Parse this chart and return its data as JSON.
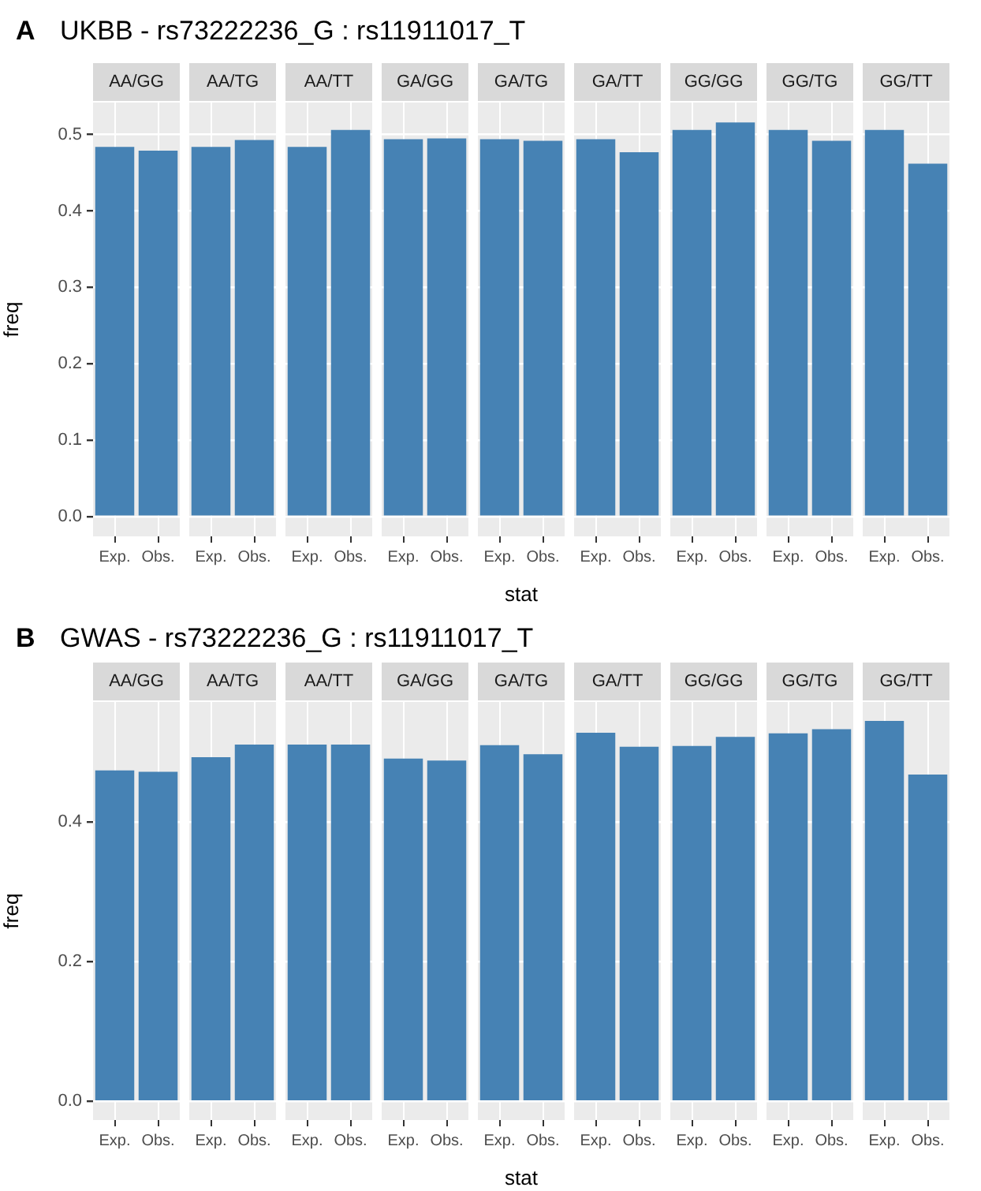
{
  "chart_data": [
    {
      "type": "other",
      "title": "UKBB - rs73222236_G : rs11911017_T",
      "annotations": [
        "A"
      ]
    },
    {
      "type": "bar",
      "title": "AA/GG",
      "categories": [
        "Exp.",
        "Obs."
      ],
      "values": [
        0.484,
        0.479
      ],
      "color": "#4682b4",
      "ylim": [
        -0.026,
        0.542
      ],
      "yticks": [
        {
          "value": 0,
          "label": "0.0"
        },
        0.1,
        0.2,
        0.3,
        0.4,
        0.5
      ],
      "grid": true,
      "ylabel": "freq"
    },
    {
      "type": "bar",
      "title": "AA/TG",
      "categories": [
        "Exp.",
        "Obs."
      ],
      "values": [
        0.484,
        0.493
      ],
      "color": "#4682b4",
      "ylim": [
        -0.026,
        0.542
      ],
      "yticks": [
        0,
        0.1,
        0.2,
        0.3,
        0.4,
        0.5
      ],
      "grid": true,
      "tick_labels": "x"
    },
    {
      "type": "bar",
      "title": "AA/TT",
      "categories": [
        "Exp.",
        "Obs."
      ],
      "values": [
        0.484,
        0.506
      ],
      "color": "#4682b4",
      "ylim": [
        -0.026,
        0.542
      ],
      "yticks": [
        0,
        0.1,
        0.2,
        0.3,
        0.4,
        0.5
      ],
      "grid": true,
      "tick_labels": "x"
    },
    {
      "type": "bar",
      "title": "GA/GG",
      "categories": [
        "Exp.",
        "Obs."
      ],
      "values": [
        0.494,
        0.495
      ],
      "color": "#4682b4",
      "ylim": [
        -0.026,
        0.542
      ],
      "yticks": [
        0,
        0.1,
        0.2,
        0.3,
        0.4,
        0.5
      ],
      "grid": true,
      "tick_labels": "x"
    },
    {
      "type": "bar",
      "title": "GA/TG",
      "categories": [
        "Exp.",
        "Obs."
      ],
      "values": [
        0.494,
        0.492
      ],
      "color": "#4682b4",
      "ylim": [
        -0.026,
        0.542
      ],
      "yticks": [
        0,
        0.1,
        0.2,
        0.3,
        0.4,
        0.5
      ],
      "grid": true,
      "tick_labels": "x",
      "xlabel": "stat"
    },
    {
      "type": "bar",
      "title": "GA/TT",
      "categories": [
        "Exp.",
        "Obs."
      ],
      "values": [
        0.494,
        0.477
      ],
      "color": "#4682b4",
      "ylim": [
        -0.026,
        0.542
      ],
      "yticks": [
        0,
        0.1,
        0.2,
        0.3,
        0.4,
        0.5
      ],
      "grid": true,
      "tick_labels": "x"
    },
    {
      "type": "bar",
      "title": "GG/GG",
      "categories": [
        "Exp.",
        "Obs."
      ],
      "values": [
        0.506,
        0.516
      ],
      "color": "#4682b4",
      "ylim": [
        -0.026,
        0.542
      ],
      "yticks": [
        0,
        0.1,
        0.2,
        0.3,
        0.4,
        0.5
      ],
      "grid": true,
      "tick_labels": "x"
    },
    {
      "type": "bar",
      "title": "GG/TG",
      "categories": [
        "Exp.",
        "Obs."
      ],
      "values": [
        0.506,
        0.492
      ],
      "color": "#4682b4",
      "ylim": [
        -0.026,
        0.542
      ],
      "yticks": [
        0,
        0.1,
        0.2,
        0.3,
        0.4,
        0.5
      ],
      "grid": true,
      "tick_labels": "x"
    },
    {
      "type": "bar",
      "title": "GG/TT",
      "categories": [
        "Exp.",
        "Obs."
      ],
      "values": [
        0.506,
        0.462
      ],
      "color": "#4682b4",
      "ylim": [
        -0.026,
        0.542
      ],
      "yticks": [
        0,
        0.1,
        0.2,
        0.3,
        0.4,
        0.5
      ],
      "grid": true,
      "tick_labels": "x"
    },
    {
      "type": "other",
      "title": "GWAS - rs73222236_G : rs11911017_T",
      "annotations": [
        "B"
      ]
    },
    {
      "type": "bar",
      "title": "AA/GG",
      "categories": [
        "Exp.",
        "Obs."
      ],
      "values": [
        0.474,
        0.472
      ],
      "color": "#4682b4",
      "ylim": [
        -0.027,
        0.572
      ],
      "yticks": [
        {
          "value": 0,
          "label": "0.0"
        },
        0.2,
        0.4
      ],
      "grid": true,
      "ylabel": "freq"
    },
    {
      "type": "bar",
      "title": "AA/TG",
      "categories": [
        "Exp.",
        "Obs."
      ],
      "values": [
        0.493,
        0.511
      ],
      "color": "#4682b4",
      "ylim": [
        -0.027,
        0.572
      ],
      "yticks": [
        0,
        0.2,
        0.4
      ],
      "grid": true,
      "tick_labels": "x"
    },
    {
      "type": "bar",
      "title": "AA/TT",
      "categories": [
        "Exp.",
        "Obs."
      ],
      "values": [
        0.511,
        0.511
      ],
      "color": "#4682b4",
      "ylim": [
        -0.027,
        0.572
      ],
      "yticks": [
        0,
        0.2,
        0.4
      ],
      "grid": true,
      "tick_labels": "x"
    },
    {
      "type": "bar",
      "title": "GA/GG",
      "categories": [
        "Exp.",
        "Obs."
      ],
      "values": [
        0.491,
        0.488
      ],
      "color": "#4682b4",
      "ylim": [
        -0.027,
        0.572
      ],
      "yticks": [
        0,
        0.2,
        0.4
      ],
      "grid": true,
      "tick_labels": "x"
    },
    {
      "type": "bar",
      "title": "GA/TG",
      "categories": [
        "Exp.",
        "Obs."
      ],
      "values": [
        0.51,
        0.497
      ],
      "color": "#4682b4",
      "ylim": [
        -0.027,
        0.572
      ],
      "yticks": [
        0,
        0.2,
        0.4
      ],
      "grid": true,
      "tick_labels": "x",
      "xlabel": "stat"
    },
    {
      "type": "bar",
      "title": "GA/TT",
      "categories": [
        "Exp.",
        "Obs."
      ],
      "values": [
        0.528,
        0.508
      ],
      "color": "#4682b4",
      "ylim": [
        -0.027,
        0.572
      ],
      "yticks": [
        0,
        0.2,
        0.4
      ],
      "grid": true,
      "tick_labels": "x"
    },
    {
      "type": "bar",
      "title": "GG/GG",
      "categories": [
        "Exp.",
        "Obs."
      ],
      "values": [
        0.509,
        0.522
      ],
      "color": "#4682b4",
      "ylim": [
        -0.027,
        0.572
      ],
      "yticks": [
        0,
        0.2,
        0.4
      ],
      "grid": true,
      "tick_labels": "x"
    },
    {
      "type": "bar",
      "title": "GG/TG",
      "categories": [
        "Exp.",
        "Obs."
      ],
      "values": [
        0.527,
        0.533
      ],
      "color": "#4682b4",
      "ylim": [
        -0.027,
        0.572
      ],
      "yticks": [
        0,
        0.2,
        0.4
      ],
      "grid": true,
      "tick_labels": "x"
    },
    {
      "type": "bar",
      "title": "GG/TT",
      "categories": [
        "Exp.",
        "Obs."
      ],
      "values": [
        0.545,
        0.468
      ],
      "color": "#4682b4",
      "ylim": [
        -0.027,
        0.572
      ],
      "yticks": [
        0,
        0.2,
        0.4
      ],
      "grid": true,
      "tick_labels": "x"
    }
  ]
}
